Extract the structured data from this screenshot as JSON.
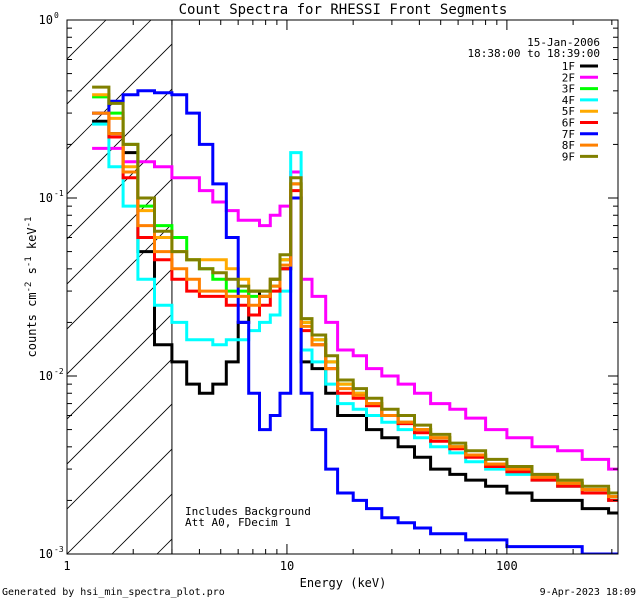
{
  "chart_data": {
    "type": "line",
    "title": "Count Spectra for RHESSI Front Segments",
    "xlabel": "Energy (keV)",
    "ylabel_main": "counts cm",
    "ylabel_exp1": "-2",
    "ylabel_mid": " s",
    "ylabel_exp2": "-1",
    "ylabel_end": " keV",
    "ylabel_exp3": "-1",
    "xscale": "log",
    "yscale": "log",
    "xlim": [
      1,
      320
    ],
    "ylim": [
      0.001,
      1.0
    ],
    "x_ticks": [
      {
        "value": 1,
        "label": "1"
      },
      {
        "value": 10,
        "label": "10"
      },
      {
        "value": 100,
        "label": "100"
      }
    ],
    "y_ticks": [
      {
        "value": 0.001,
        "base": "10",
        "exp": "-3"
      },
      {
        "value": 0.01,
        "base": "10",
        "exp": "-2"
      },
      {
        "value": 0.1,
        "base": "10",
        "exp": "-1"
      },
      {
        "value": 1.0,
        "base": "10",
        "exp": "0"
      }
    ],
    "attenuator_cutoff_keV": 3,
    "date": "15-Jan-2006",
    "time_range": "18:38:00 to 18:39:00",
    "annotations": [
      "Includes Background",
      "Att A0, FDecim 1"
    ],
    "footer_left": "Generated by hsi_min_spectra_plot.pro",
    "footer_right": "9-Apr-2023 18:09",
    "series": [
      {
        "name": "1F",
        "color": "#000000",
        "values": [
          0.27,
          0.23,
          0.18,
          0.05,
          0.015,
          0.012,
          0.009,
          0.008,
          0.009,
          0.012,
          0.02,
          0.03,
          0.028,
          0.035,
          0.04,
          0.1,
          0.012,
          0.011,
          0.008,
          0.006,
          0.006,
          0.005,
          0.0045,
          0.004,
          0.0035,
          0.003,
          0.0028,
          0.0026,
          0.0024,
          0.0022,
          0.002,
          0.002,
          0.0018,
          0.0017
        ]
      },
      {
        "name": "2F",
        "color": "#ff00ff",
        "values": [
          0.19,
          0.19,
          0.16,
          0.16,
          0.15,
          0.13,
          0.13,
          0.11,
          0.095,
          0.085,
          0.075,
          0.075,
          0.07,
          0.08,
          0.09,
          0.14,
          0.035,
          0.028,
          0.02,
          0.014,
          0.013,
          0.011,
          0.01,
          0.009,
          0.008,
          0.007,
          0.0065,
          0.0058,
          0.005,
          0.0045,
          0.004,
          0.0038,
          0.0034,
          0.003
        ]
      },
      {
        "name": "3F",
        "color": "#00ff00",
        "values": [
          0.37,
          0.3,
          0.2,
          0.09,
          0.07,
          0.06,
          0.045,
          0.04,
          0.035,
          0.03,
          0.03,
          0.028,
          0.028,
          0.032,
          0.045,
          0.12,
          0.02,
          0.016,
          0.012,
          0.009,
          0.008,
          0.007,
          0.006,
          0.0055,
          0.005,
          0.0045,
          0.004,
          0.0036,
          0.0032,
          0.003,
          0.0027,
          0.0025,
          0.0023,
          0.0021
        ]
      },
      {
        "name": "4F",
        "color": "#00ffff",
        "values": [
          0.26,
          0.15,
          0.09,
          0.035,
          0.025,
          0.02,
          0.016,
          0.016,
          0.015,
          0.016,
          0.016,
          0.018,
          0.02,
          0.022,
          0.03,
          0.18,
          0.014,
          0.012,
          0.009,
          0.007,
          0.0065,
          0.006,
          0.0055,
          0.005,
          0.0045,
          0.004,
          0.0037,
          0.0033,
          0.003,
          0.0028,
          0.0026,
          0.0024,
          0.0022,
          0.002
        ]
      },
      {
        "name": "5F",
        "color": "#ffaa00",
        "values": [
          0.38,
          0.28,
          0.15,
          0.085,
          0.06,
          0.05,
          0.045,
          0.045,
          0.045,
          0.04,
          0.035,
          0.03,
          0.03,
          0.035,
          0.045,
          0.12,
          0.02,
          0.016,
          0.012,
          0.009,
          0.008,
          0.007,
          0.006,
          0.0055,
          0.005,
          0.0045,
          0.004,
          0.0036,
          0.0032,
          0.003,
          0.0027,
          0.0025,
          0.0023,
          0.0021
        ]
      },
      {
        "name": "6F",
        "color": "#ff0000",
        "values": [
          0.3,
          0.22,
          0.13,
          0.06,
          0.045,
          0.035,
          0.03,
          0.028,
          0.028,
          0.025,
          0.025,
          0.022,
          0.025,
          0.03,
          0.04,
          0.11,
          0.018,
          0.015,
          0.011,
          0.008,
          0.0075,
          0.0068,
          0.006,
          0.0054,
          0.0048,
          0.0043,
          0.0039,
          0.0035,
          0.0031,
          0.0029,
          0.0026,
          0.0024,
          0.0022,
          0.002
        ]
      },
      {
        "name": "7F",
        "color": "#0000ff",
        "values": [
          0.3,
          0.35,
          0.38,
          0.4,
          0.39,
          0.38,
          0.3,
          0.2,
          0.12,
          0.06,
          0.02,
          0.008,
          0.005,
          0.006,
          0.008,
          0.1,
          0.008,
          0.005,
          0.003,
          0.0022,
          0.002,
          0.0018,
          0.0016,
          0.0015,
          0.0014,
          0.0013,
          0.0013,
          0.0012,
          0.0012,
          0.0011,
          0.0011,
          0.0011,
          0.001,
          0.001
        ]
      },
      {
        "name": "8F",
        "color": "#ff8000",
        "values": [
          0.3,
          0.23,
          0.14,
          0.07,
          0.05,
          0.04,
          0.035,
          0.03,
          0.03,
          0.028,
          0.028,
          0.025,
          0.028,
          0.032,
          0.042,
          0.12,
          0.019,
          0.015,
          0.011,
          0.0085,
          0.0078,
          0.007,
          0.006,
          0.0055,
          0.005,
          0.0045,
          0.004,
          0.0036,
          0.0032,
          0.003,
          0.0027,
          0.0025,
          0.0023,
          0.0021
        ]
      },
      {
        "name": "9F",
        "color": "#808000",
        "values": [
          0.42,
          0.34,
          0.2,
          0.1,
          0.065,
          0.05,
          0.045,
          0.04,
          0.038,
          0.035,
          0.032,
          0.03,
          0.03,
          0.035,
          0.048,
          0.13,
          0.021,
          0.017,
          0.013,
          0.0095,
          0.0085,
          0.0075,
          0.0065,
          0.006,
          0.0053,
          0.0047,
          0.0042,
          0.0038,
          0.0034,
          0.0031,
          0.0028,
          0.0026,
          0.0024,
          0.0022
        ]
      }
    ],
    "x_bins_keV": [
      1.3,
      1.55,
      1.8,
      2.1,
      2.5,
      3.0,
      3.5,
      4.0,
      4.6,
      5.3,
      6.0,
      6.7,
      7.5,
      8.4,
      9.3,
      10.4,
      11.6,
      13,
      15,
      17,
      20,
      23,
      27,
      32,
      38,
      45,
      55,
      65,
      80,
      100,
      130,
      170,
      220,
      290
    ]
  }
}
